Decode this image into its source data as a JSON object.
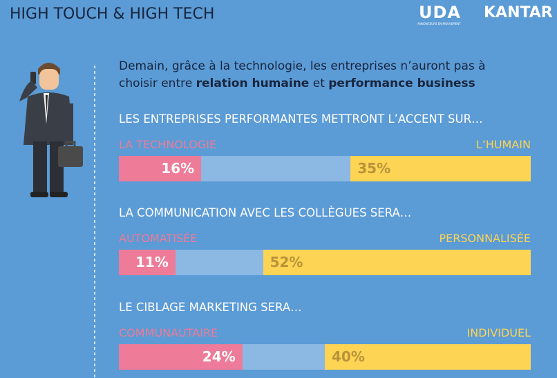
{
  "header": {
    "title": "HIGH TOUCH & HIGH TECH",
    "logo_uda": "UDA",
    "logo_uda_tagline": "ANNONCEURS EN MOUVEMENT",
    "logo_kantar": "KANTAR"
  },
  "intro": [
    "Demain, grâce à la technologie, les entreprises n’auront pas à choisir entre ",
    "relation humaine",
    " et ",
    "performance business"
  ],
  "chart_data": [
    {
      "type": "bar",
      "title": "LES ENTREPRISES PERFORMANTES METTRONT L’ACCENT SUR…",
      "categories": [
        "LA TECHNOLOGIE",
        "L’HUMAIN"
      ],
      "values": [
        16,
        35
      ],
      "value_labels": [
        "16%",
        "35%"
      ],
      "colors": [
        "#ee7b97",
        "#fdd453"
      ],
      "xlim": [
        0,
        80
      ]
    },
    {
      "type": "bar",
      "title": "LA COMMUNICATION AVEC LES COLLÈGUES SERA…",
      "categories": [
        "AUTOMATISÉE",
        "PERSONNALISÉE"
      ],
      "values": [
        11,
        52
      ],
      "value_labels": [
        "11%",
        "52%"
      ],
      "colors": [
        "#ee7b97",
        "#fdd453"
      ],
      "xlim": [
        0,
        80
      ]
    },
    {
      "type": "bar",
      "title": "LE CIBLAGE MARKETING SERA…",
      "categories": [
        "COMMUNAUTAIRE",
        "INDIVIDUEL"
      ],
      "values": [
        24,
        40
      ],
      "value_labels": [
        "24%",
        "40%"
      ],
      "colors": [
        "#ee7b97",
        "#fdd453"
      ],
      "xlim": [
        0,
        80
      ]
    }
  ]
}
